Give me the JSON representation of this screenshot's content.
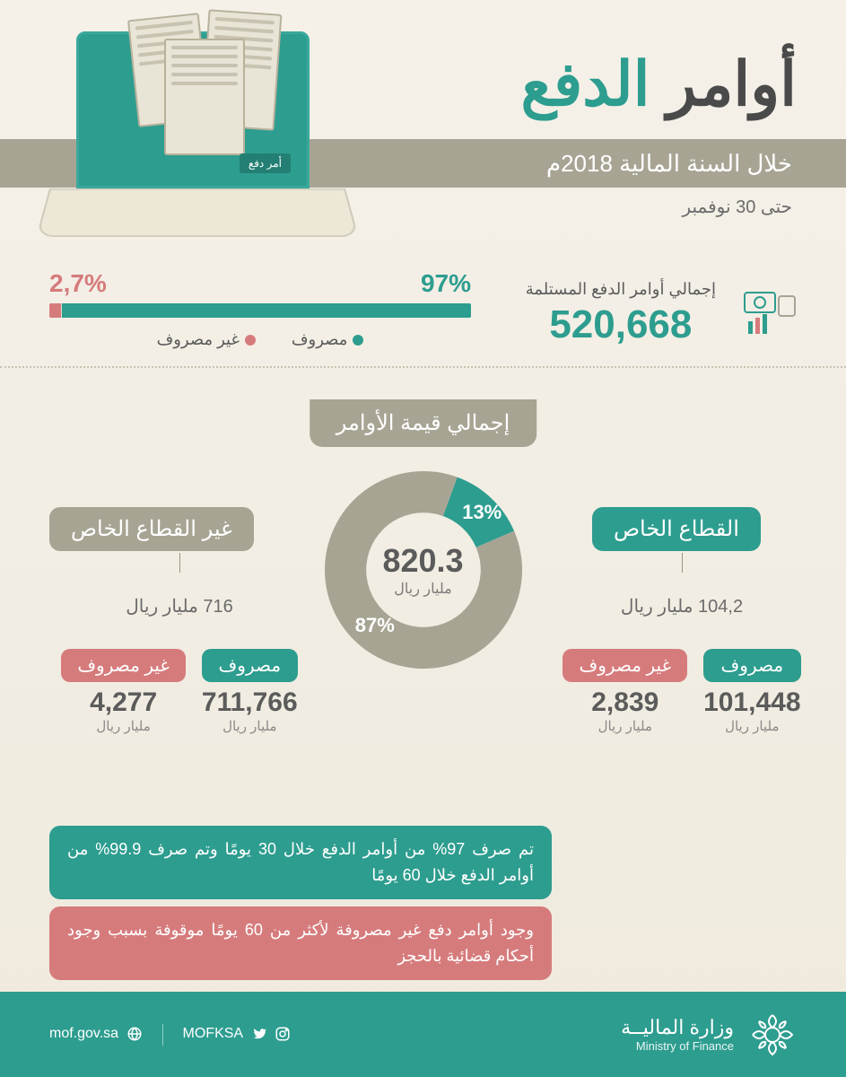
{
  "colors": {
    "teal": "#2d9d8f",
    "teal_dark": "#237f73",
    "rose": "#d67b7c",
    "khaki": "#a8a494",
    "bg_top": "#f5f1e9",
    "bg_bot": "#efeadd",
    "text_dark": "#4a4a4a",
    "text_mid": "#5b5b5b",
    "text_muted": "#6b6b6b"
  },
  "header": {
    "title_part1": "أوامر",
    "title_part2": "الدفع",
    "subtitle": "خلال السنة المالية 2018م",
    "date_note": "حتى 30 نوفمبر",
    "screen_button": "أمر دفع"
  },
  "totals": {
    "label": "إجمالي أوامر الدفع المستلمة",
    "value": "520,668"
  },
  "bar": {
    "paid_pct": 97,
    "paid_label": "97%",
    "unpaid_pct": 2.7,
    "unpaid_label": "2,7%",
    "legend_paid": "مصروف",
    "legend_unpaid": "غير مصروف",
    "paid_color": "#2d9d8f",
    "unpaid_color": "#d67b7c"
  },
  "mid_title": "إجمالي قيمة الأوامر",
  "donut": {
    "type": "donut",
    "value": "820.3",
    "unit": "مليار ريال",
    "slices": [
      {
        "label": "13%",
        "pct": 13,
        "color": "#2d9d8f"
      },
      {
        "label": "87%",
        "pct": 87,
        "color": "#a8a494"
      }
    ],
    "inner_radius_pct": 58
  },
  "sectors": {
    "private": {
      "pill": "القطاع الخاص",
      "pill_color": "#2d9d8f",
      "amount": "104,2 مليار ريال",
      "paid": {
        "chip": "مصروف",
        "chip_color": "#2d9d8f",
        "value": "101,448",
        "unit": "مليار ريال"
      },
      "unpaid": {
        "chip": "غير مصروف",
        "chip_color": "#d67b7c",
        "value": "2,839",
        "unit": "مليار ريال"
      }
    },
    "non_private": {
      "pill": "غير القطاع الخاص",
      "pill_color": "#a8a494",
      "amount": "716 مليار ريال",
      "paid": {
        "chip": "مصروف",
        "chip_color": "#2d9d8f",
        "value": "711,766",
        "unit": "مليار ريال"
      },
      "unpaid": {
        "chip": "غير مصروف",
        "chip_color": "#d67b7c",
        "value": "4,277",
        "unit": "مليار ريال"
      }
    }
  },
  "notes": {
    "n1": "تم صرف 97% من أوامر الدفع خلال 30 يومًا وتم صرف 99.9% من أوامر الدفع خلال 60 يومًا",
    "n1_color": "#2d9d8f",
    "n2": "وجود أوامر دفع غير مصروفة لأكثر من 60 يومًا موقوفة بسبب وجود أحكام قضائية بالحجز",
    "n2_color": "#d67b7c"
  },
  "footer": {
    "org_ar": "وزارة الماليــة",
    "org_en": "Ministry of Finance",
    "handle": "MOFKSA",
    "site": "mof.gov.sa"
  }
}
